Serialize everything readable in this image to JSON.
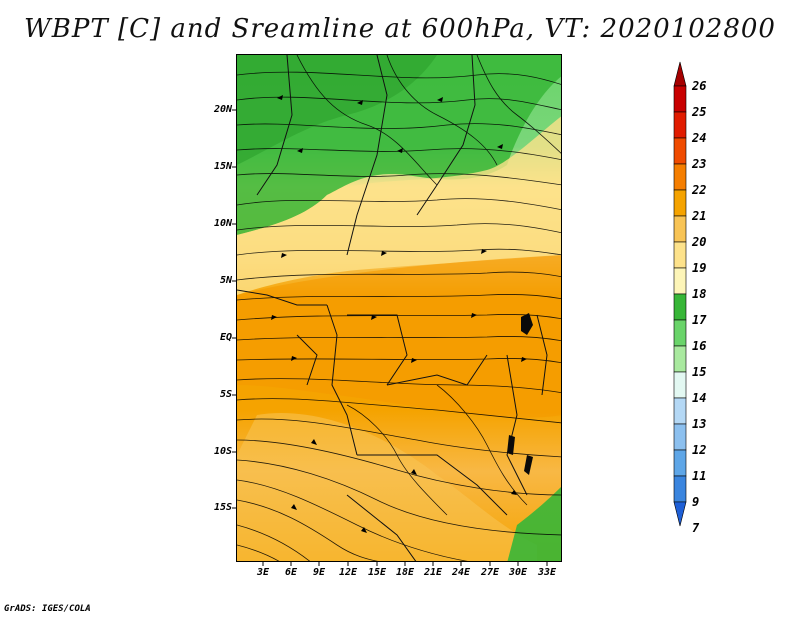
{
  "title": "WBPT [C] and Sreamline at 600hPa, VT: 2020102800",
  "credit": "GrADS: IGES/COLA",
  "lat_ticks": [
    "20N",
    "15N",
    "10N",
    "5N",
    "EQ",
    "5S",
    "10S",
    "15S"
  ],
  "lon_ticks": [
    "3E",
    "6E",
    "9E",
    "12E",
    "15E",
    "18E",
    "21E",
    "24E",
    "27E",
    "30E",
    "33E"
  ],
  "colorbar": {
    "labels": [
      "26",
      "25",
      "24",
      "23",
      "22",
      "21",
      "20",
      "19",
      "18",
      "17",
      "16",
      "15",
      "14",
      "13",
      "12",
      "11",
      "9",
      "7"
    ],
    "colors": [
      "#a50000",
      "#c80000",
      "#e11c00",
      "#f04b00",
      "#f57e00",
      "#f5a300",
      "#f8c456",
      "#fde28b",
      "#fdf5b8",
      "#37b637",
      "#6ad46a",
      "#a9e99f",
      "#e3f8f2",
      "#b4d8f5",
      "#8cc0ef",
      "#5ea6e7",
      "#3a85de",
      "#1e5fd6"
    ]
  }
}
